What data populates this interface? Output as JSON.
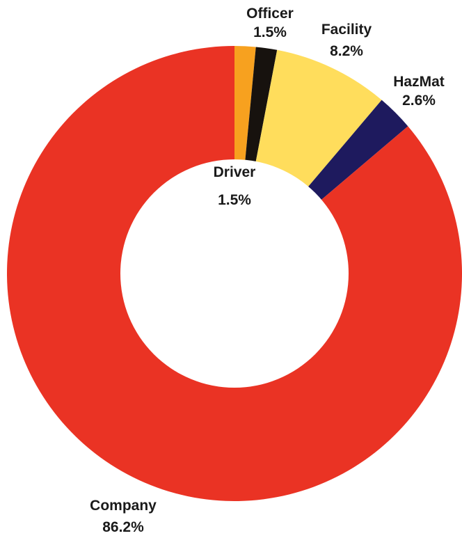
{
  "chart_data": {
    "type": "pie",
    "donut": true,
    "slices": [
      {
        "label": "Driver",
        "value": 1.5,
        "value_label": "1.5%",
        "color": "#F7A11F"
      },
      {
        "label": "Officer",
        "value": 1.5,
        "value_label": "1.5%",
        "color": "#17120E"
      },
      {
        "label": "Facility",
        "value": 8.2,
        "value_label": "8.2%",
        "color": "#FFDD5C"
      },
      {
        "label": "HazMat",
        "value": 2.6,
        "value_label": "2.6%",
        "color": "#1E1A5E"
      },
      {
        "label": "Company",
        "value": 86.2,
        "value_label": "86.2%",
        "color": "#EA3324"
      }
    ],
    "start": "top",
    "direction": "clockwise"
  }
}
